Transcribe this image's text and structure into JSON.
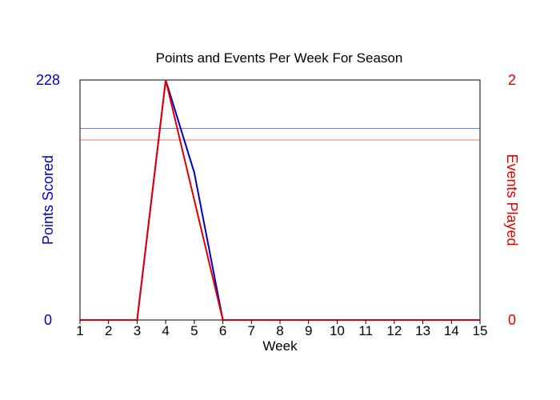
{
  "chart_data": {
    "type": "line",
    "title": "Points and Events Per Week For Season",
    "xlabel": "Week",
    "ylabel_left": "Points Scored",
    "ylabel_right": "Events Played",
    "x": [
      1,
      2,
      3,
      4,
      5,
      6,
      7,
      8,
      9,
      10,
      11,
      12,
      13,
      14,
      15
    ],
    "xlim": [
      1,
      15
    ],
    "ylim_left": [
      0,
      228
    ],
    "ylim_right": [
      0,
      2
    ],
    "left_tick_labels": [
      "0",
      "228"
    ],
    "right_tick_labels": [
      "0",
      "2"
    ],
    "grid": false,
    "series": [
      {
        "name": "Points Scored",
        "axis": "left",
        "color": "#0000c0",
        "values": [
          0,
          0,
          0,
          228,
          140,
          0,
          0,
          0,
          0,
          0,
          0,
          0,
          0,
          0,
          0
        ],
        "average": 182
      },
      {
        "name": "Events Played",
        "axis": "right",
        "color": "#e00000",
        "values": [
          0,
          0,
          0,
          2,
          1,
          0,
          0,
          0,
          0,
          0,
          0,
          0,
          0,
          0,
          0
        ],
        "average": 1.5
      }
    ]
  }
}
